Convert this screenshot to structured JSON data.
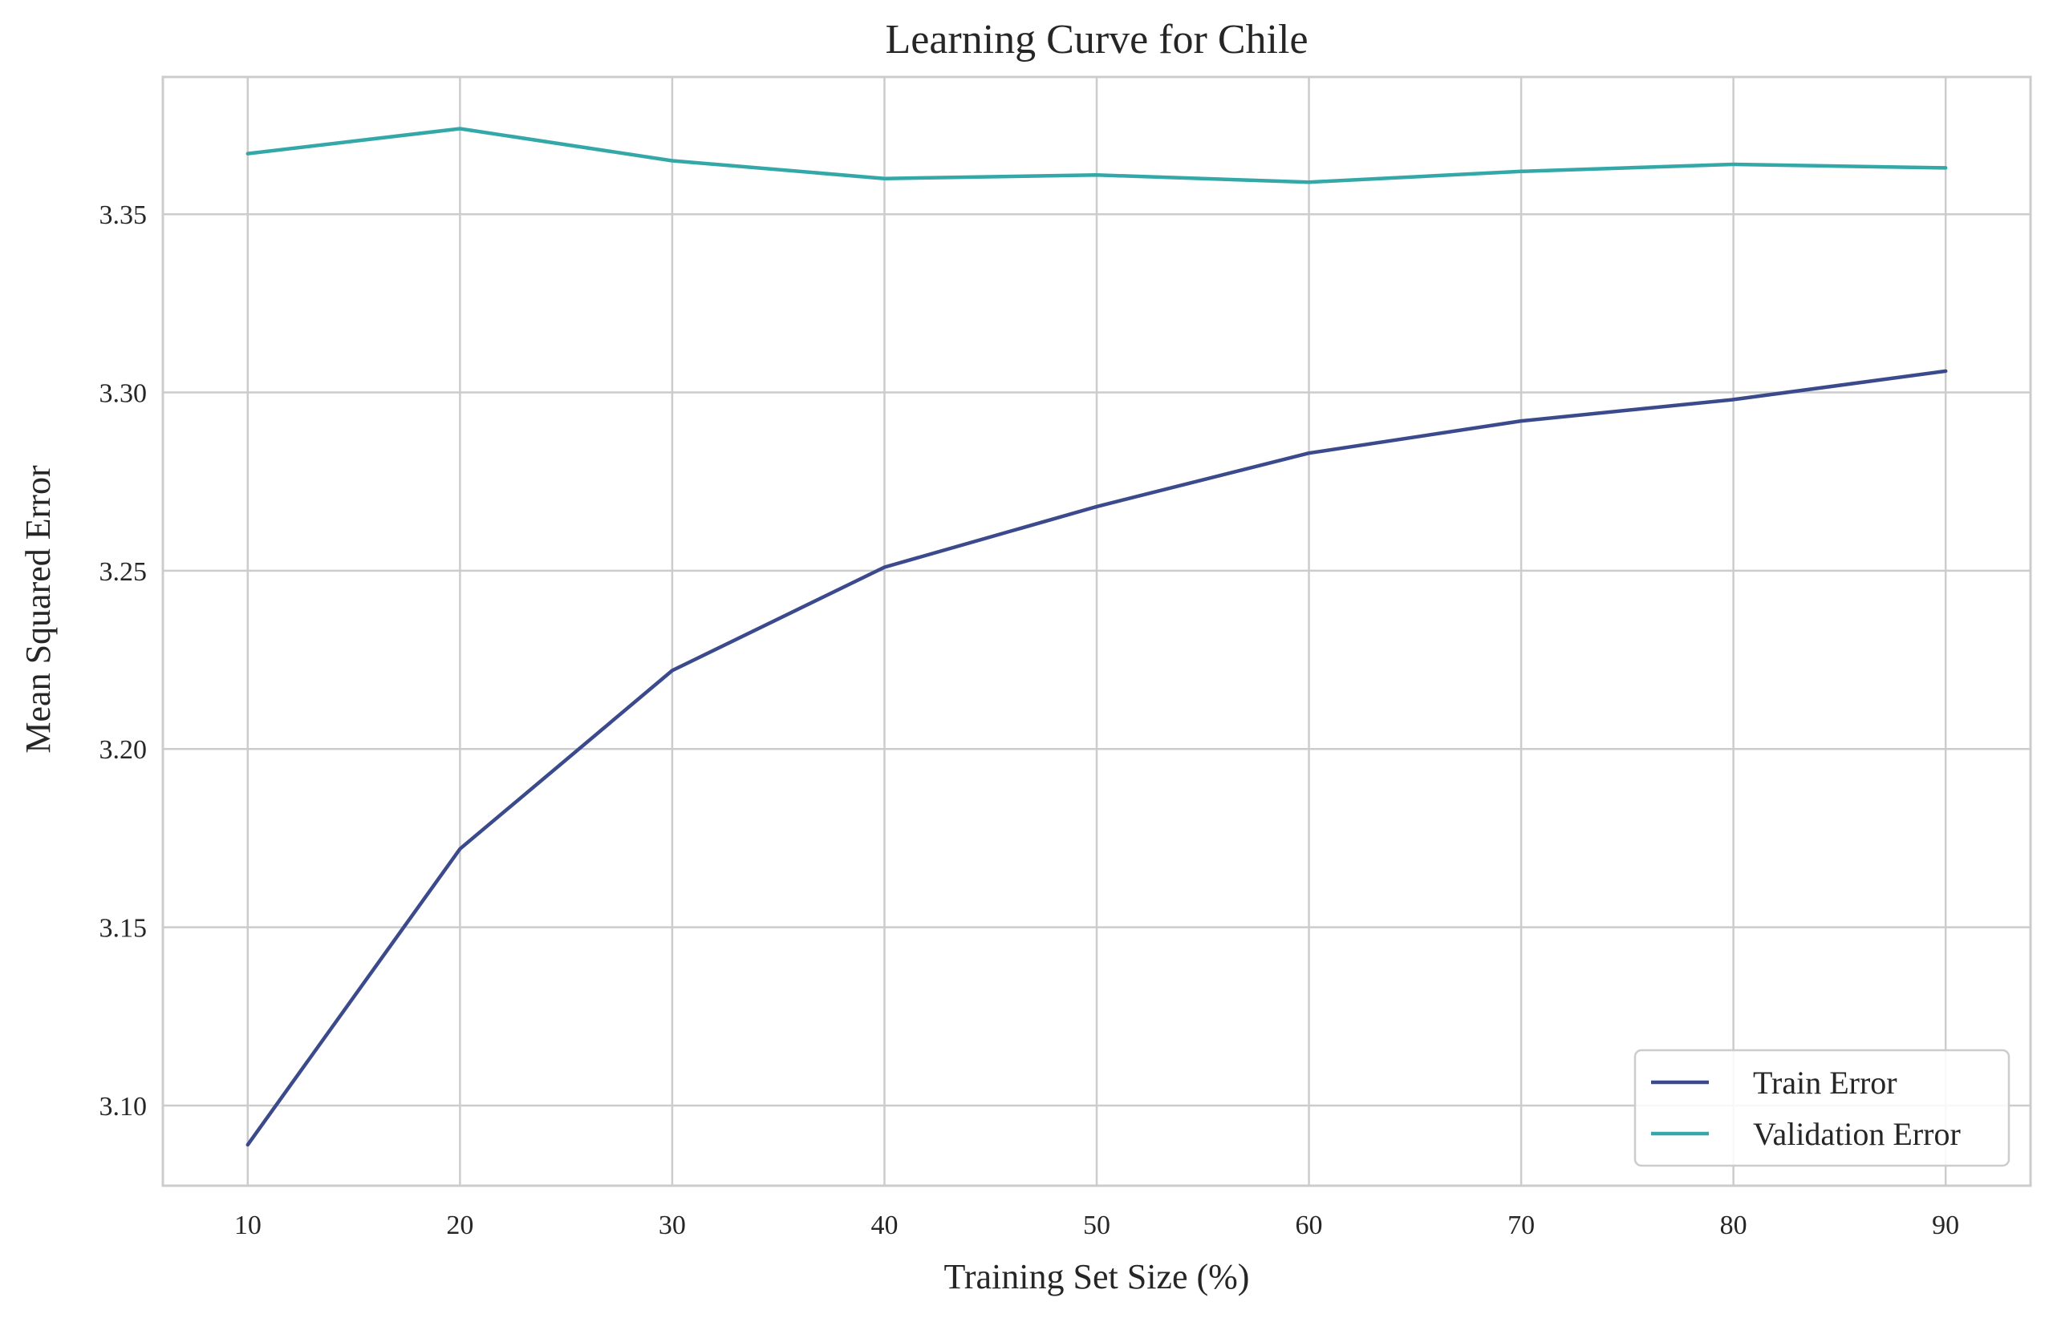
{
  "chart_data": {
    "type": "line",
    "title": "Learning Curve for Chile",
    "xlabel": "Training Set Size (%)",
    "ylabel": "Mean Squared Error",
    "x": [
      10,
      20,
      30,
      40,
      50,
      60,
      70,
      80,
      90
    ],
    "xlim": [
      6,
      94
    ],
    "ylim": [
      3.0775,
      3.3885
    ],
    "xticks": [
      10,
      20,
      30,
      40,
      50,
      60,
      70,
      80,
      90
    ],
    "xtick_labels": [
      "10",
      "20",
      "30",
      "40",
      "50",
      "60",
      "70",
      "80",
      "90"
    ],
    "yticks": [
      3.1,
      3.15,
      3.2,
      3.25,
      3.3,
      3.35
    ],
    "ytick_labels": [
      "3.10",
      "3.15",
      "3.20",
      "3.25",
      "3.30",
      "3.35"
    ],
    "grid": true,
    "legend_position": "lower-right",
    "series": [
      {
        "name": "Train Error",
        "color": "#3b4a8c",
        "values": [
          3.089,
          3.172,
          3.222,
          3.251,
          3.268,
          3.283,
          3.292,
          3.298,
          3.306
        ]
      },
      {
        "name": "Validation Error",
        "color": "#34a8a8",
        "values": [
          3.367,
          3.374,
          3.365,
          3.36,
          3.361,
          3.359,
          3.362,
          3.364,
          3.363
        ]
      }
    ]
  }
}
